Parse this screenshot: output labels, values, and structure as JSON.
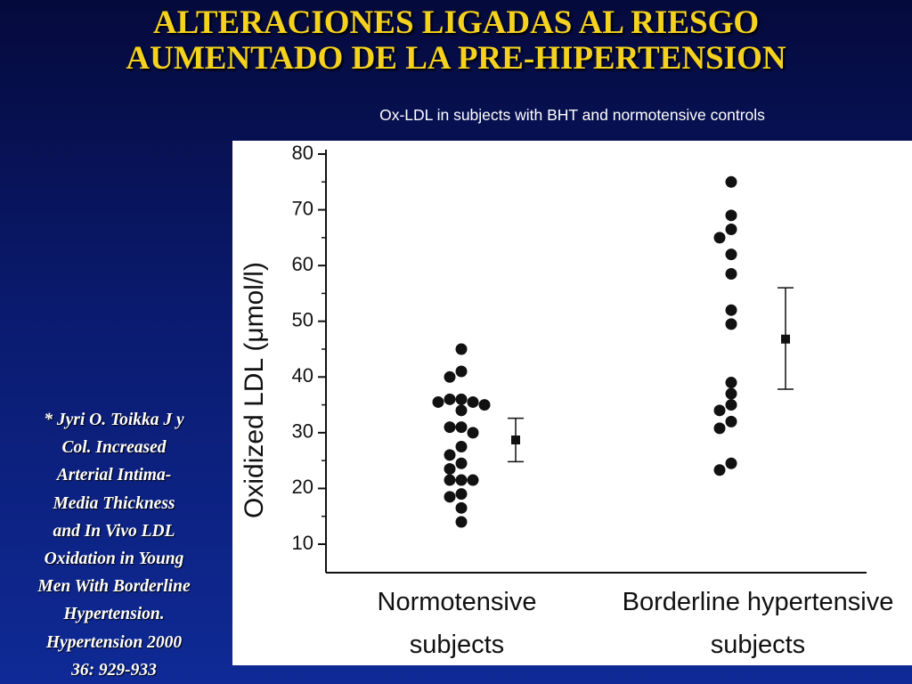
{
  "slide": {
    "title_lines": [
      "ALTERACIONES LIGADAS AL RIESGO",
      "AUMENTADO DE LA PRE-HIPERTENSION"
    ],
    "caption": "Ox-LDL in subjects with BHT and normotensive controls",
    "citation_lines": [
      "* Jyri O. Toikka J y",
      "Col. Increased",
      "Arterial Intima-",
      "Media Thickness",
      "and In Vivo LDL",
      "Oxidation in Young",
      "Men With Borderline",
      "Hypertension.",
      "Hypertension 2000",
      "36: 929-933"
    ]
  },
  "colors": {
    "title": "#f5d21e",
    "text": "#ffffff",
    "background": "#0a1a6e",
    "marker": "#111111"
  },
  "chart_data": {
    "type": "scatter",
    "ylabel": "Oxidized LDL (μmol/l)",
    "ylim": [
      10,
      80
    ],
    "yticks": [
      10,
      20,
      30,
      40,
      50,
      60,
      70,
      80
    ],
    "grid": false,
    "categories": [
      [
        "Normotensive",
        "subjects"
      ],
      [
        "Borderline hypertensive",
        "subjects"
      ]
    ],
    "series": [
      {
        "values": [
          45,
          41,
          40,
          36,
          36,
          35.5,
          35.5,
          35,
          34,
          31,
          31,
          30,
          27.5,
          26,
          24.5,
          23.5,
          21.5,
          21.5,
          21.5,
          19,
          18.5,
          16.5,
          14
        ],
        "mean": 28.7,
        "error_low": 24.8,
        "error_high": 32.6
      },
      {
        "values": [
          75,
          69,
          66.5,
          65,
          62,
          58.5,
          52,
          49.5,
          39,
          37,
          35,
          34,
          32,
          30.8,
          24.5,
          23.3
        ],
        "mean": 46.8,
        "error_low": 37.8,
        "error_high": 56
      }
    ]
  }
}
